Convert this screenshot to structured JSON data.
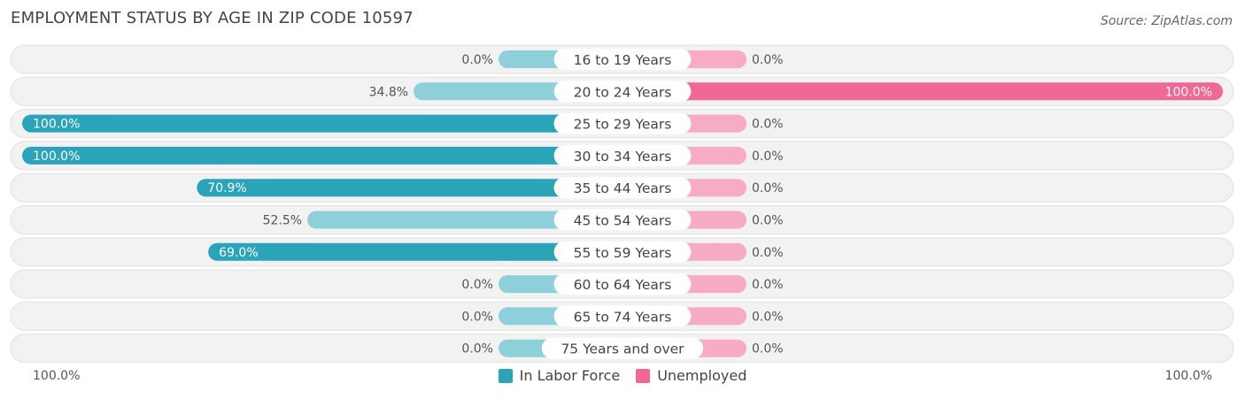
{
  "title": "EMPLOYMENT STATUS BY AGE IN ZIP CODE 10597",
  "source": "Source: ZipAtlas.com",
  "colors": {
    "in_labor_force": "#2ba3b8",
    "in_labor_force_light": "#8dd0da",
    "unemployed": "#f06894",
    "unemployed_light": "#f7abc4",
    "row_bg": "#f2f2f2",
    "row_border": "#e0e0e0"
  },
  "chart_data": {
    "type": "bar",
    "orientation": "horizontal-diverging",
    "categories": [
      "16 to 19 Years",
      "20 to 24 Years",
      "25 to 29 Years",
      "30 to 34 Years",
      "35 to 44 Years",
      "45 to 54 Years",
      "55 to 59 Years",
      "60 to 64 Years",
      "65 to 74 Years",
      "75 Years and over"
    ],
    "series": [
      {
        "name": "In Labor Force",
        "values": [
          0.0,
          34.8,
          100.0,
          100.0,
          70.9,
          52.5,
          69.0,
          0.0,
          0.0,
          0.0
        ],
        "labels": [
          "0.0%",
          "34.8%",
          "100.0%",
          "100.0%",
          "70.9%",
          "52.5%",
          "69.0%",
          "0.0%",
          "0.0%",
          "0.0%"
        ]
      },
      {
        "name": "Unemployed",
        "values": [
          0.0,
          100.0,
          0.0,
          0.0,
          0.0,
          0.0,
          0.0,
          0.0,
          0.0,
          0.0
        ],
        "labels": [
          "0.0%",
          "100.0%",
          "0.0%",
          "0.0%",
          "0.0%",
          "0.0%",
          "0.0%",
          "0.0%",
          "0.0%",
          "0.0%"
        ]
      }
    ],
    "xlim": [
      0,
      100
    ],
    "axis_left_label": "100.0%",
    "axis_right_label": "100.0%",
    "legend_position": "bottom-center"
  }
}
